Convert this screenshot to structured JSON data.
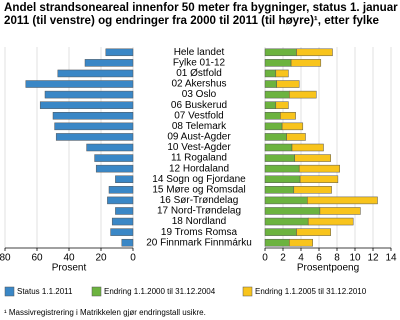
{
  "title": "Andel strandsoneareal innenfor 50 meter fra bygninger, status 1. januar 2011 (til venstre) og endringer fra 2000 til 2011 (til høyre)¹, etter fylke",
  "footnote": "¹ Massivregistrering i Matrikkelen gjør endringstall usikre.",
  "chart_data": [
    {
      "type": "bar",
      "orientation": "horizontal",
      "categories": [
        "Hele landet",
        "Fylke 01-12",
        "01 Østfold",
        "02 Akershus",
        "03 Oslo",
        "06 Buskerud",
        "07 Vestfold",
        "08 Telemark",
        "09 Aust-Agder",
        "10 Vest-Agder",
        "11 Rogaland",
        "12 Hordaland",
        "14 Sogn og Fjordane",
        "15 Møre og Romsdal",
        "16 Sør-Trøndelag",
        "17 Nord-Trøndelag",
        "18 Nordland",
        "19 Troms Romsa",
        "20 Finnmark Finnmárku"
      ],
      "series": [
        {
          "name": "Status 1.1.2011",
          "color": "#3a87c6",
          "values": [
            17,
            30,
            47,
            67,
            55,
            58,
            50,
            49,
            48,
            29,
            24,
            23,
            11,
            15,
            16,
            11,
            13,
            14,
            7
          ]
        }
      ],
      "xlim": [
        80,
        0
      ],
      "xticks": [
        80,
        60,
        40,
        20,
        0
      ],
      "xlabel": "Prosent",
      "grid": true
    },
    {
      "type": "stacked_bar",
      "orientation": "horizontal",
      "series": [
        {
          "name": "Endring 1.1.2000 til 31.12.2004",
          "color": "#6cb33f",
          "values": [
            3.5,
            2.9,
            1.2,
            1.3,
            2.7,
            1.2,
            1.7,
            1.9,
            2.4,
            3.0,
            3.3,
            3.8,
            3.9,
            3.2,
            4.7,
            6.1,
            4.8,
            3.5,
            2.7
          ]
        },
        {
          "name": "Endring 1.1.2005 til 31.12.2010",
          "color": "#f8c41c",
          "values": [
            4.0,
            3.3,
            1.4,
            2.5,
            3.0,
            1.4,
            1.7,
            2.3,
            2.1,
            3.5,
            4.0,
            4.5,
            4.2,
            4.2,
            7.8,
            4.5,
            5.0,
            3.8,
            2.6
          ]
        }
      ],
      "xlim": [
        0,
        14
      ],
      "xticks": [
        0,
        2,
        4,
        6,
        8,
        10,
        12,
        14
      ],
      "xlabel": "Prosentpoeng",
      "grid": true
    }
  ]
}
